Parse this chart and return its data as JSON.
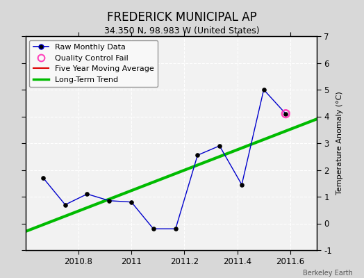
{
  "title": "FREDERICK MUNICIPAL AP",
  "subtitle": "34.350 N, 98.983 W (United States)",
  "watermark": "Berkeley Earth",
  "ylabel": "Temperature Anomaly (°C)",
  "xlim": [
    2010.6,
    2011.7
  ],
  "ylim": [
    -1,
    7
  ],
  "yticks": [
    -1,
    0,
    1,
    2,
    3,
    4,
    5,
    6,
    7
  ],
  "xticks": [
    2010.8,
    2011.0,
    2011.2,
    2011.4,
    2011.6
  ],
  "xtick_labels": [
    "2010.8",
    "2011",
    "2011.2",
    "2011.4",
    "2011.6"
  ],
  "background_color": "#d8d8d8",
  "plot_bg_color": "#f2f2f2",
  "grid_color": "#ffffff",
  "raw_x": [
    2010.667,
    2010.75,
    2010.833,
    2010.917,
    2011.0,
    2011.083,
    2011.167,
    2011.25,
    2011.333,
    2011.417,
    2011.5,
    2011.583
  ],
  "raw_y": [
    1.7,
    0.7,
    1.1,
    0.85,
    0.8,
    -0.2,
    -0.2,
    2.55,
    2.9,
    1.45,
    5.0,
    4.1
  ],
  "raw_line_color": "#0000cc",
  "raw_marker_color": "#000000",
  "qc_fail_x": [
    2011.583
  ],
  "qc_fail_y": [
    4.1
  ],
  "qc_fail_color": "#ff44bb",
  "trend_x": [
    2010.6,
    2011.7
  ],
  "trend_y": [
    -0.3,
    3.9
  ],
  "trend_color": "#00bb00",
  "trend_linewidth": 3,
  "mavg_color": "#dd0000",
  "legend_bg": "#f8f8f8",
  "title_fontsize": 12,
  "subtitle_fontsize": 9,
  "axis_fontsize": 8,
  "tick_fontsize": 8.5,
  "legend_fontsize": 8
}
